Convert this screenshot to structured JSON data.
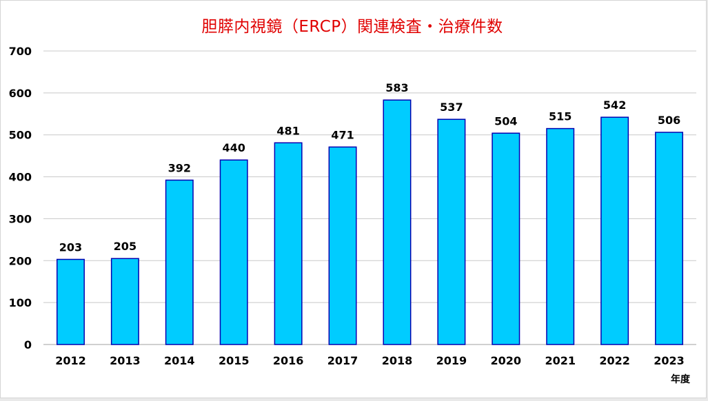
{
  "chart_data": {
    "type": "bar",
    "title": "胆膵内視鏡（ERCP）関連検査・治療件数",
    "xlabel": "年度",
    "ylabel": "",
    "categories": [
      "2012",
      "2013",
      "2014",
      "2015",
      "2016",
      "2017",
      "2018",
      "2019",
      "2020",
      "2021",
      "2022",
      "2023"
    ],
    "values": [
      203,
      205,
      392,
      440,
      481,
      471,
      583,
      537,
      504,
      515,
      542,
      506
    ],
    "ylim": [
      0,
      700
    ],
    "yticks": [
      0,
      100,
      200,
      300,
      400,
      500,
      600,
      700
    ],
    "grid": true,
    "data_labels": true,
    "colors": {
      "bar_fill": "#00ccff",
      "bar_stroke": "#0000b0",
      "title": "#e00000",
      "grid": "#c8c8c8"
    }
  }
}
